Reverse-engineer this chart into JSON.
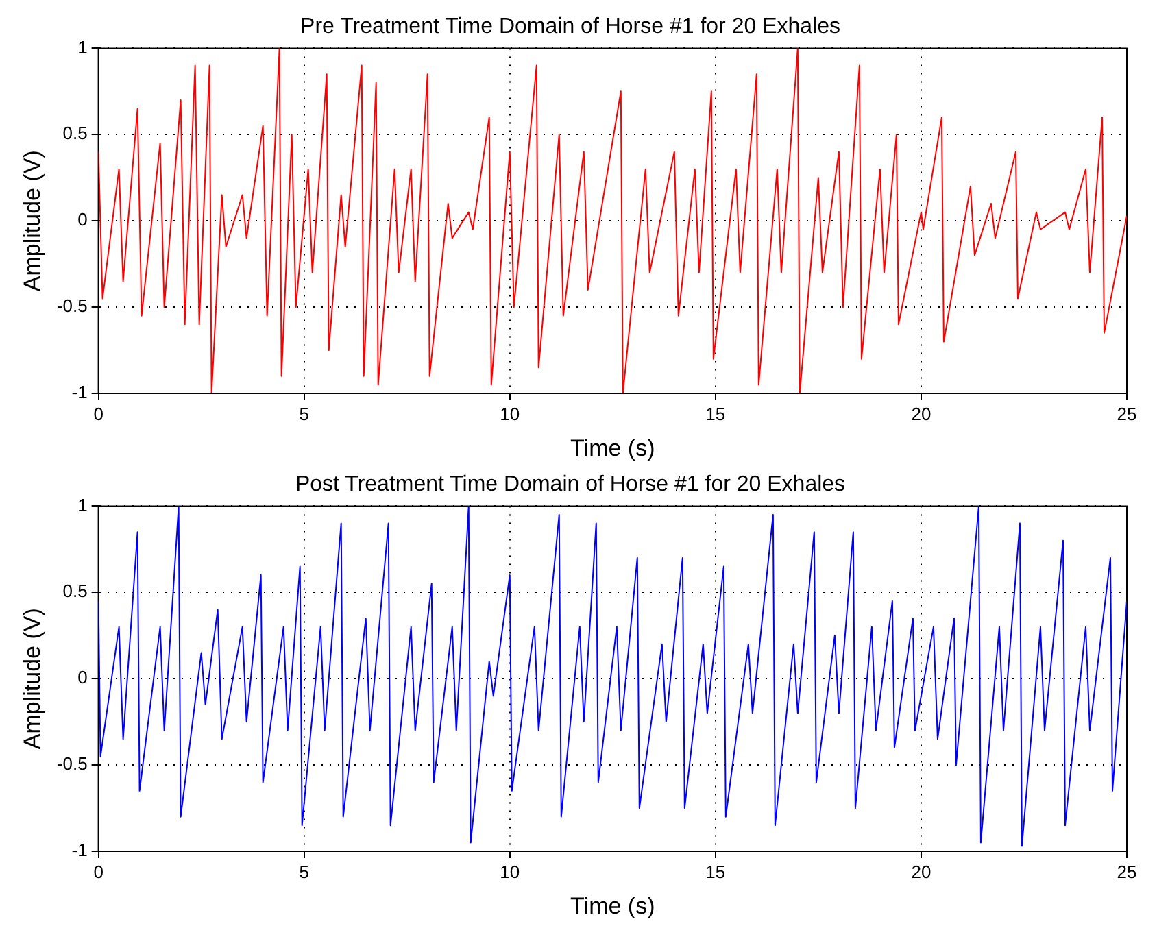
{
  "chart_data": [
    {
      "type": "line",
      "title": "Pre Treatment Time Domain of Horse #1 for 20 Exhales",
      "xlabel": "Time (s)",
      "ylabel": "Amplitude (V)",
      "xlim": [
        0,
        25
      ],
      "xticks": [
        0,
        5,
        10,
        15,
        20,
        25
      ],
      "ylim": [
        -1,
        1
      ],
      "yticks": [
        -1,
        -0.5,
        0,
        0.5,
        1
      ],
      "grid": true,
      "series": [
        {
          "color": "#ff0000",
          "x": [
            0,
            0.1,
            0.5,
            0.6,
            0.95,
            1.05,
            1.5,
            1.6,
            2.0,
            2.1,
            2.35,
            2.45,
            2.7,
            2.75,
            3.0,
            3.1,
            3.5,
            3.6,
            4.0,
            4.1,
            4.4,
            4.45,
            4.7,
            4.8,
            5.1,
            5.2,
            5.55,
            5.6,
            5.9,
            6.0,
            6.4,
            6.45,
            6.75,
            6.8,
            7.2,
            7.3,
            7.6,
            7.7,
            8.0,
            8.05,
            8.5,
            8.6,
            9.0,
            9.1,
            9.5,
            9.55,
            10.0,
            10.1,
            10.65,
            10.7,
            11.2,
            11.3,
            11.8,
            11.9,
            12.7,
            12.75,
            13.3,
            13.4,
            14.0,
            14.1,
            14.5,
            14.6,
            14.9,
            14.95,
            15.5,
            15.6,
            16.0,
            16.05,
            16.5,
            16.6,
            17.0,
            17.05,
            17.5,
            17.6,
            18.0,
            18.1,
            18.5,
            18.55,
            19.0,
            19.1,
            19.4,
            19.45,
            20.0,
            20.05,
            20.5,
            20.55,
            21.2,
            21.3,
            21.7,
            21.8,
            22.3,
            22.35,
            22.8,
            22.9,
            23.5,
            23.6,
            24.0,
            24.1,
            24.4,
            24.45,
            25.0
          ],
          "values": [
            0.4,
            -0.45,
            0.3,
            -0.35,
            0.65,
            -0.55,
            0.45,
            -0.5,
            0.7,
            -0.6,
            0.9,
            -0.6,
            0.9,
            -1.0,
            0.15,
            -0.15,
            0.15,
            -0.1,
            0.55,
            -0.55,
            1.0,
            -0.9,
            0.5,
            -0.5,
            0.3,
            -0.3,
            0.85,
            -0.75,
            0.15,
            -0.15,
            0.9,
            -0.9,
            0.8,
            -0.95,
            0.3,
            -0.3,
            0.3,
            -0.35,
            0.85,
            -0.9,
            0.1,
            -0.1,
            0.05,
            -0.05,
            0.6,
            -0.95,
            0.4,
            -0.5,
            0.9,
            -0.85,
            0.5,
            -0.55,
            0.4,
            -0.4,
            0.75,
            -1.0,
            0.3,
            -0.3,
            0.4,
            -0.55,
            0.3,
            -0.3,
            0.75,
            -0.8,
            0.3,
            -0.3,
            0.85,
            -0.95,
            0.3,
            -0.3,
            1.0,
            -1.0,
            0.25,
            -0.3,
            0.4,
            -0.5,
            0.9,
            -0.8,
            0.3,
            -0.3,
            0.5,
            -0.6,
            0.05,
            -0.05,
            0.6,
            -0.7,
            0.2,
            -0.2,
            0.1,
            -0.1,
            0.4,
            -0.45,
            0.05,
            -0.05,
            0.05,
            -0.05,
            0.3,
            -0.3,
            0.6,
            -0.65,
            0.03
          ]
        }
      ]
    },
    {
      "type": "line",
      "title": "Post Treatment Time Domain of Horse #1 for 20 Exhales",
      "xlabel": "Time (s)",
      "ylabel": "Amplitude (V)",
      "xlim": [
        0,
        25
      ],
      "xticks": [
        0,
        5,
        10,
        15,
        20,
        25
      ],
      "ylim": [
        -1,
        1
      ],
      "yticks": [
        -1,
        -0.5,
        0,
        0.5,
        1
      ],
      "grid": true,
      "series": [
        {
          "color": "#0000ff",
          "x": [
            0,
            0.05,
            0.5,
            0.6,
            0.95,
            1.0,
            1.5,
            1.6,
            1.95,
            2.0,
            2.5,
            2.6,
            2.9,
            3.0,
            3.5,
            3.6,
            3.95,
            4.0,
            4.5,
            4.6,
            4.9,
            4.95,
            5.4,
            5.5,
            5.9,
            5.95,
            6.5,
            6.6,
            7.05,
            7.1,
            7.6,
            7.7,
            8.1,
            8.15,
            8.6,
            8.7,
            9.0,
            9.05,
            9.5,
            9.6,
            10.0,
            10.05,
            10.6,
            10.7,
            11.2,
            11.25,
            11.7,
            11.8,
            12.1,
            12.15,
            12.6,
            12.7,
            13.1,
            13.15,
            13.7,
            13.8,
            14.2,
            14.25,
            14.7,
            14.8,
            15.2,
            15.25,
            15.8,
            15.9,
            16.4,
            16.45,
            16.9,
            17.0,
            17.4,
            17.45,
            17.9,
            18.0,
            18.35,
            18.4,
            18.8,
            18.9,
            19.3,
            19.35,
            19.8,
            19.85,
            20.3,
            20.4,
            20.8,
            20.85,
            21.4,
            21.45,
            21.9,
            22.0,
            22.4,
            22.45,
            22.9,
            23.0,
            23.45,
            23.5,
            24.0,
            24.1,
            24.6,
            24.65,
            25.0
          ],
          "values": [
            0.45,
            -0.45,
            0.3,
            -0.35,
            0.85,
            -0.65,
            0.3,
            -0.3,
            1.0,
            -0.8,
            0.15,
            -0.15,
            0.4,
            -0.35,
            0.3,
            -0.25,
            0.6,
            -0.6,
            0.3,
            -0.3,
            0.65,
            -0.85,
            0.3,
            -0.3,
            0.9,
            -0.8,
            0.35,
            -0.3,
            0.9,
            -0.85,
            0.3,
            -0.3,
            0.55,
            -0.6,
            0.3,
            -0.3,
            1.0,
            -0.95,
            0.1,
            -0.1,
            0.6,
            -0.65,
            0.3,
            -0.3,
            0.95,
            -0.8,
            0.3,
            -0.25,
            0.9,
            -0.6,
            0.3,
            -0.3,
            0.7,
            -0.75,
            0.2,
            -0.25,
            0.7,
            -0.75,
            0.2,
            -0.2,
            0.65,
            -0.8,
            0.2,
            -0.2,
            0.95,
            -0.85,
            0.2,
            -0.2,
            0.85,
            -0.6,
            0.25,
            -0.2,
            0.85,
            -0.75,
            0.3,
            -0.3,
            0.45,
            -0.4,
            0.35,
            -0.3,
            0.3,
            -0.35,
            0.35,
            -0.5,
            1.0,
            -0.95,
            0.3,
            -0.3,
            0.9,
            -0.97,
            0.3,
            -0.3,
            0.8,
            -0.85,
            0.3,
            -0.3,
            0.7,
            -0.65,
            0.45
          ]
        }
      ]
    }
  ]
}
